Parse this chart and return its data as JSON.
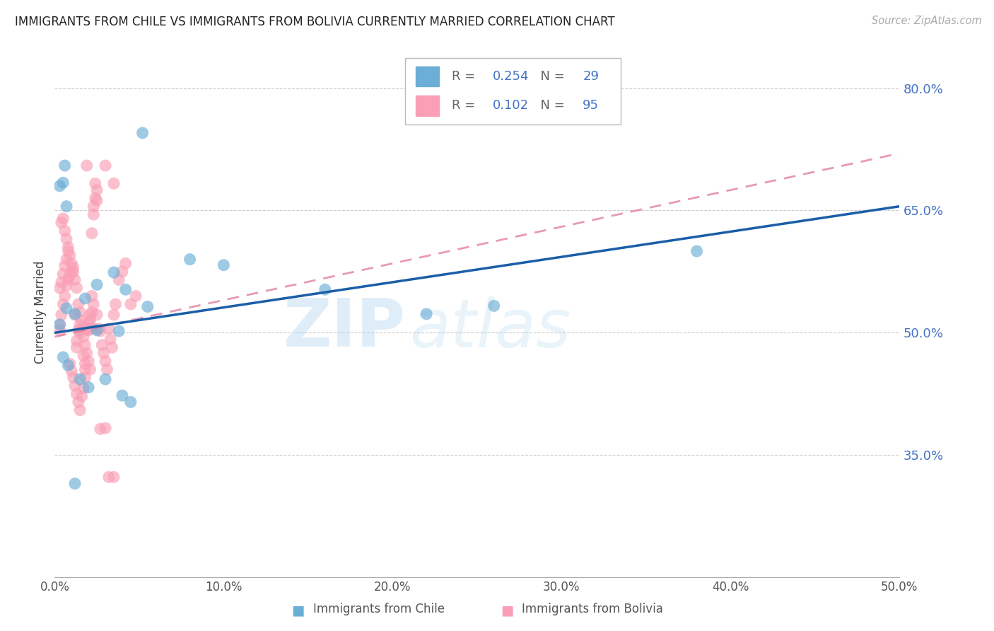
{
  "title": "IMMIGRANTS FROM CHILE VS IMMIGRANTS FROM BOLIVIA CURRENTLY MARRIED CORRELATION CHART",
  "source": "Source: ZipAtlas.com",
  "ylabel": "Currently Married",
  "xlim": [
    0.0,
    0.5
  ],
  "ylim": [
    0.2,
    0.85
  ],
  "yticks": [
    0.35,
    0.5,
    0.65,
    0.8
  ],
  "xticks": [
    0.0,
    0.1,
    0.2,
    0.3,
    0.4,
    0.5
  ],
  "chile_R": 0.254,
  "chile_N": 29,
  "bolivia_R": 0.102,
  "bolivia_N": 95,
  "chile_color": "#6baed6",
  "bolivia_color": "#fa9fb5",
  "trend_chile_color": "#1a5ea8",
  "trend_bolivia_color": "#e07898",
  "watermark_zip": "ZIP",
  "watermark_atlas": "atlas",
  "chile_x": [
    0.025,
    0.038,
    0.005,
    0.008,
    0.003,
    0.007,
    0.012,
    0.018,
    0.005,
    0.025,
    0.035,
    0.042,
    0.055,
    0.1,
    0.16,
    0.22,
    0.26,
    0.08,
    0.38,
    0.007,
    0.003,
    0.006,
    0.015,
    0.02,
    0.03,
    0.04,
    0.045,
    0.012,
    0.052
  ],
  "chile_y": [
    0.503,
    0.502,
    0.47,
    0.46,
    0.51,
    0.53,
    0.523,
    0.542,
    0.684,
    0.559,
    0.574,
    0.553,
    0.532,
    0.583,
    0.553,
    0.523,
    0.533,
    0.59,
    0.6,
    0.655,
    0.68,
    0.705,
    0.443,
    0.433,
    0.443,
    0.423,
    0.415,
    0.315,
    0.745
  ],
  "bolivia_x": [
    0.003,
    0.003,
    0.004,
    0.005,
    0.006,
    0.007,
    0.008,
    0.009,
    0.01,
    0.011,
    0.012,
    0.013,
    0.013,
    0.014,
    0.015,
    0.015,
    0.016,
    0.017,
    0.018,
    0.018,
    0.019,
    0.02,
    0.02,
    0.021,
    0.022,
    0.022,
    0.023,
    0.023,
    0.024,
    0.025,
    0.025,
    0.026,
    0.027,
    0.028,
    0.029,
    0.03,
    0.031,
    0.032,
    0.033,
    0.034,
    0.035,
    0.036,
    0.038,
    0.04,
    0.042,
    0.045,
    0.048,
    0.004,
    0.005,
    0.006,
    0.007,
    0.008,
    0.009,
    0.01,
    0.011,
    0.012,
    0.013,
    0.014,
    0.015,
    0.016,
    0.017,
    0.018,
    0.019,
    0.02,
    0.021,
    0.022,
    0.003,
    0.004,
    0.005,
    0.006,
    0.007,
    0.008,
    0.009,
    0.01,
    0.011,
    0.012,
    0.013,
    0.014,
    0.015,
    0.016,
    0.017,
    0.018,
    0.02,
    0.021,
    0.022,
    0.023,
    0.019,
    0.024,
    0.025,
    0.027,
    0.03,
    0.032,
    0.035,
    0.03,
    0.035
  ],
  "bolivia_y": [
    0.503,
    0.51,
    0.522,
    0.535,
    0.545,
    0.558,
    0.565,
    0.57,
    0.575,
    0.58,
    0.522,
    0.482,
    0.49,
    0.503,
    0.51,
    0.5,
    0.515,
    0.472,
    0.462,
    0.455,
    0.505,
    0.512,
    0.503,
    0.522,
    0.622,
    0.505,
    0.645,
    0.655,
    0.665,
    0.675,
    0.522,
    0.505,
    0.502,
    0.485,
    0.475,
    0.465,
    0.455,
    0.505,
    0.492,
    0.482,
    0.522,
    0.535,
    0.565,
    0.575,
    0.585,
    0.535,
    0.545,
    0.635,
    0.64,
    0.625,
    0.615,
    0.605,
    0.595,
    0.585,
    0.575,
    0.565,
    0.555,
    0.535,
    0.525,
    0.505,
    0.495,
    0.485,
    0.475,
    0.465,
    0.455,
    0.545,
    0.555,
    0.562,
    0.572,
    0.582,
    0.59,
    0.6,
    0.462,
    0.453,
    0.445,
    0.435,
    0.425,
    0.415,
    0.405,
    0.422,
    0.432,
    0.445,
    0.505,
    0.515,
    0.525,
    0.535,
    0.705,
    0.683,
    0.662,
    0.382,
    0.383,
    0.323,
    0.323,
    0.705,
    0.683
  ]
}
